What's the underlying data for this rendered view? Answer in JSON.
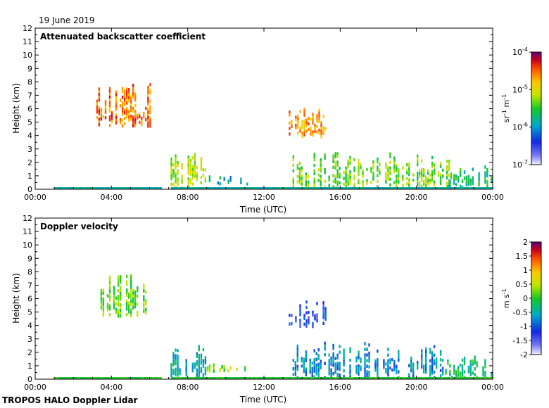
{
  "date_label": "19 June 2019",
  "footer_label": "TROPOS HALO Doppler Lidar",
  "chart_data": [
    {
      "type": "heatmap",
      "title": "Attenuated backscatter coefficient",
      "xlabel": "Time (UTC)",
      "ylabel": "Height (km)",
      "xlim": [
        0,
        24
      ],
      "ylim": [
        0,
        12
      ],
      "x_ticks": [
        "00:00",
        "04:00",
        "08:00",
        "12:00",
        "16:00",
        "20:00",
        "00:00"
      ],
      "y_ticks": [
        0,
        1,
        2,
        3,
        4,
        5,
        6,
        7,
        8,
        9,
        10,
        11,
        12
      ],
      "colorbar": {
        "label": "sr-1 m-1",
        "scale": "log",
        "range": [
          1e-07,
          0.0001
        ],
        "ticks": [
          "10-7",
          "10-6",
          "10-5",
          "10-4"
        ]
      },
      "features": [
        {
          "time_start": 3.2,
          "time_end": 6.1,
          "height_bottom": 4.6,
          "height_top": 8.0,
          "level": "~3e-6 to 1e-5"
        },
        {
          "time_start": 7.1,
          "time_end": 9.0,
          "height_bottom": 0.0,
          "height_top": 2.8,
          "level": "~1e-6 to 1e-5"
        },
        {
          "time_start": 9.0,
          "time_end": 11.3,
          "height_bottom": 0.3,
          "height_top": 1.1,
          "level": "~5e-7"
        },
        {
          "time_start": 13.3,
          "time_end": 15.3,
          "height_bottom": 3.8,
          "height_top": 6.3,
          "level": "~3e-6"
        },
        {
          "time_start": 13.5,
          "time_end": 22.0,
          "height_bottom": 0.0,
          "height_top": 2.8,
          "level": "~1e-6 to 1e-5"
        },
        {
          "time_start": 21.5,
          "time_end": 24.0,
          "height_bottom": 0.0,
          "height_top": 1.8,
          "level": "~5e-7 to 1e-5"
        }
      ]
    },
    {
      "type": "heatmap",
      "title": "Doppler velocity",
      "xlabel": "Time (UTC)",
      "ylabel": "Height (km)",
      "xlim": [
        0,
        24
      ],
      "ylim": [
        0,
        12
      ],
      "x_ticks": [
        "00:00",
        "04:00",
        "08:00",
        "12:00",
        "16:00",
        "20:00",
        "00:00"
      ],
      "y_ticks": [
        0,
        1,
        2,
        3,
        4,
        5,
        6,
        7,
        8,
        9,
        10,
        11,
        12
      ],
      "colorbar": {
        "label": "m s-1",
        "scale": "linear",
        "range": [
          -2,
          2
        ],
        "ticks": [
          "-2",
          "-1.5",
          "-1",
          "-0.5",
          "0",
          "0.5",
          "1",
          "1.5",
          "2"
        ]
      },
      "features": [
        {
          "time_start": 3.2,
          "time_end": 6.1,
          "height_bottom": 4.6,
          "height_top": 8.0,
          "velocity": "~0 to 0.5"
        },
        {
          "time_start": 7.1,
          "time_end": 9.0,
          "height_bottom": 0.0,
          "height_top": 2.8,
          "velocity": "~-1 to 0"
        },
        {
          "time_start": 9.0,
          "time_end": 11.3,
          "height_bottom": 0.5,
          "height_top": 1.2,
          "velocity": "~0.3 to 0.8"
        },
        {
          "time_start": 13.3,
          "time_end": 15.3,
          "height_bottom": 3.8,
          "height_top": 6.3,
          "velocity": "~-1.3"
        },
        {
          "time_start": 13.5,
          "time_end": 22.0,
          "height_bottom": 0.0,
          "height_top": 2.8,
          "velocity": "~-1.5 to 0"
        },
        {
          "time_start": 21.5,
          "time_end": 24.0,
          "height_bottom": 0.0,
          "height_top": 1.8,
          "velocity": "~-0.5 to 0.5"
        }
      ]
    }
  ]
}
